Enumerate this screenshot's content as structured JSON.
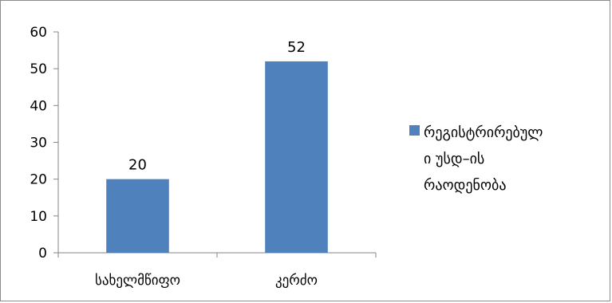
{
  "chart_data": {
    "type": "bar",
    "categories": [
      "სახელმწიფო",
      "კერძო"
    ],
    "series": [
      {
        "name": "რეგისტრირებული უსდ–ის რაოდენობა",
        "values": [
          20,
          52
        ],
        "color": "#4f81bd"
      }
    ],
    "ylim": [
      0,
      60
    ],
    "yticks": [
      0,
      10,
      20,
      30,
      40,
      50,
      60
    ],
    "data_labels": true,
    "grid": false,
    "legend": {
      "position": "right",
      "lines": [
        "რეგისტრირებულ",
        "ი უსდ–ის",
        "რაოდენობა"
      ]
    }
  }
}
